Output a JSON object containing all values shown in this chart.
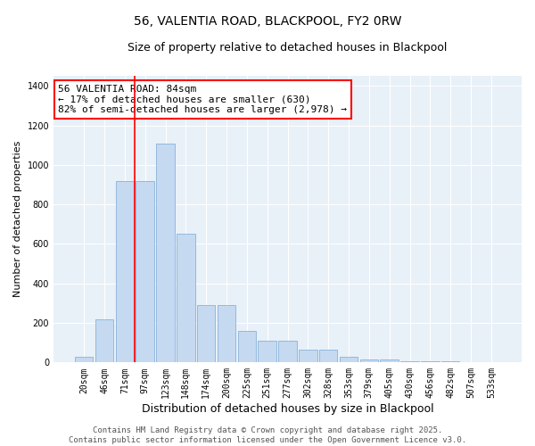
{
  "title": "56, VALENTIA ROAD, BLACKPOOL, FY2 0RW",
  "subtitle": "Size of property relative to detached houses in Blackpool",
  "xlabel": "Distribution of detached houses by size in Blackpool",
  "ylabel": "Number of detached properties",
  "categories": [
    "20sqm",
    "46sqm",
    "71sqm",
    "97sqm",
    "123sqm",
    "148sqm",
    "174sqm",
    "200sqm",
    "225sqm",
    "251sqm",
    "277sqm",
    "302sqm",
    "328sqm",
    "353sqm",
    "379sqm",
    "405sqm",
    "430sqm",
    "456sqm",
    "482sqm",
    "507sqm",
    "533sqm"
  ],
  "values": [
    30,
    220,
    920,
    920,
    1110,
    650,
    290,
    290,
    160,
    110,
    110,
    65,
    65,
    30,
    15,
    15,
    8,
    8,
    5,
    3,
    2
  ],
  "bar_color": "#c5d9f0",
  "bar_edge_color": "#7aa8d4",
  "annotation_text": "56 VALENTIA ROAD: 84sqm\n← 17% of detached houses are smaller (630)\n82% of semi-detached houses are larger (2,978) →",
  "ylim": [
    0,
    1450
  ],
  "yticks": [
    0,
    200,
    400,
    600,
    800,
    1000,
    1200,
    1400
  ],
  "background_color": "#e8f0f8",
  "footer_text": "Contains HM Land Registry data © Crown copyright and database right 2025.\nContains public sector information licensed under the Open Government Licence v3.0.",
  "title_fontsize": 10,
  "subtitle_fontsize": 9,
  "xlabel_fontsize": 9,
  "ylabel_fontsize": 8,
  "tick_fontsize": 7,
  "annotation_fontsize": 8,
  "footer_fontsize": 6.5,
  "line_x_index": 2.5
}
